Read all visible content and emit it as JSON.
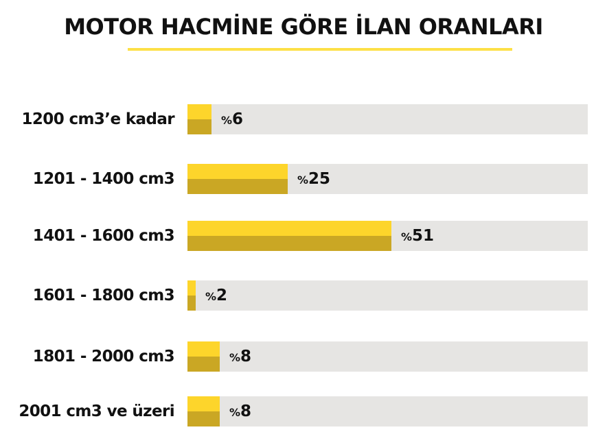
{
  "chart_data": {
    "type": "bar",
    "orientation": "horizontal",
    "title": "MOTOR HACMİNE GÖRE İLAN ORANLARI",
    "categories": [
      "1200 cm3’e kadar",
      "1201 - 1400 cm3",
      "1401 - 1600 cm3",
      "1601 - 1800 cm3",
      "1801 - 2000 cm3",
      "2001 cm3 ve üzeri"
    ],
    "values": [
      6,
      25,
      51,
      2,
      8,
      8
    ],
    "value_prefix": "%",
    "xlim": [
      0,
      100
    ],
    "grid": false,
    "colors": {
      "bar_top": "#fdd52b",
      "bar_bottom": "#caa724",
      "track": "#e6e5e3",
      "accent_line": "#fde047"
    }
  }
}
